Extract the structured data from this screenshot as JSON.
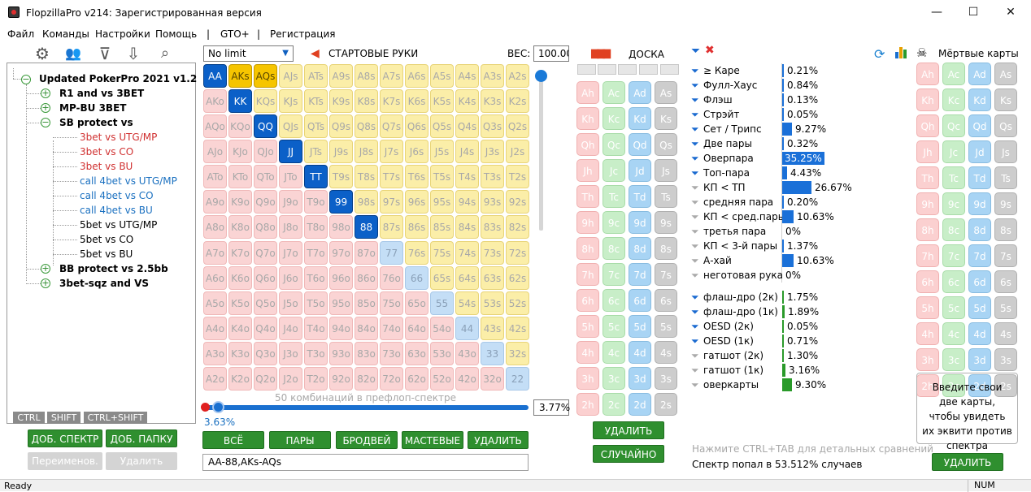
{
  "window": {
    "title": "FlopzillaPro v214: Зарегистрированная версия",
    "min": "—",
    "max": "☐",
    "close": "✕"
  },
  "menu": [
    "Файл",
    "Команды",
    "Настройки",
    "Помощь",
    "|",
    "GTO+",
    "|",
    "Регистрация"
  ],
  "toolbar_icons": [
    "gear-icon",
    "users-icon",
    "filter-add-icon",
    "import-icon",
    "search-icon"
  ],
  "tree": {
    "root": "Updated PokerPro 2021 v1.2",
    "nodes": [
      {
        "label": "R1 and vs 3BET",
        "bold": true,
        "sign": "+"
      },
      {
        "label": "MP-BU 3BET",
        "bold": true,
        "sign": "+"
      },
      {
        "label": "SB protect vs",
        "bold": true,
        "sign": "−"
      },
      {
        "label": "3bet vs UTG/MP",
        "color": "#d03030"
      },
      {
        "label": "3bet vs CO",
        "color": "#d03030"
      },
      {
        "label": "3bet vs BU",
        "color": "#d03030"
      },
      {
        "label": "call 4bet vs UTG/MP",
        "color": "#1a70c0"
      },
      {
        "label": "call 4bet vs CO",
        "color": "#1a70c0"
      },
      {
        "label": "call 4bet vs BU",
        "color": "#1a70c0"
      },
      {
        "label": "5bet vs UTG/MP",
        "color": "#000"
      },
      {
        "label": "5bet vs CO",
        "color": "#000"
      },
      {
        "label": "5bet vs BU",
        "color": "#000"
      },
      {
        "label": "BB protect vs 2.5bb",
        "bold": true,
        "sign": "+"
      },
      {
        "label": "3bet-sqz and VS",
        "bold": true,
        "sign": "+"
      }
    ]
  },
  "modkeys": [
    "CTRL",
    "SHIFT",
    "CTRL+SHIFT"
  ],
  "left_buttons": {
    "add_range": "ДОБ. СПЕКТР",
    "add_folder": "ДОБ. ПАПКУ",
    "rename": "Переименов.",
    "delete": "Удалить"
  },
  "range": {
    "limit": "No limit",
    "header": "СТАРТОВЫЕ РУКИ",
    "weight_label": "ВЕС:",
    "weight": "100.00",
    "combos_text": "50 комбинаций в префлоп-спектре",
    "percent_left": "3.63%",
    "percent_box": "3.77%",
    "input_text": "AA-88,AKs-AQs",
    "buttons": [
      "ВСЁ",
      "ПАРЫ",
      "БРОДВЕЙ",
      "МАСТЕВЫЕ",
      "УДАЛИТЬ"
    ]
  },
  "grid": [
    [
      "AA",
      "AKs",
      "AQs",
      "AJs",
      "ATs",
      "A9s",
      "A8s",
      "A7s",
      "A6s",
      "A5s",
      "A4s",
      "A3s",
      "A2s"
    ],
    [
      "AKo",
      "KK",
      "KQs",
      "KJs",
      "KTs",
      "K9s",
      "K8s",
      "K7s",
      "K6s",
      "K5s",
      "K4s",
      "K3s",
      "K2s"
    ],
    [
      "AQo",
      "KQo",
      "QQ",
      "QJs",
      "QTs",
      "Q9s",
      "Q8s",
      "Q7s",
      "Q6s",
      "Q5s",
      "Q4s",
      "Q3s",
      "Q2s"
    ],
    [
      "AJo",
      "KJo",
      "QJo",
      "JJ",
      "JTs",
      "J9s",
      "J8s",
      "J7s",
      "J6s",
      "J5s",
      "J4s",
      "J3s",
      "J2s"
    ],
    [
      "ATo",
      "KTo",
      "QTo",
      "JTo",
      "TT",
      "T9s",
      "T8s",
      "T7s",
      "T6s",
      "T5s",
      "T4s",
      "T3s",
      "T2s"
    ],
    [
      "A9o",
      "K9o",
      "Q9o",
      "J9o",
      "T9o",
      "99",
      "98s",
      "97s",
      "96s",
      "95s",
      "94s",
      "93s",
      "92s"
    ],
    [
      "A8o",
      "K8o",
      "Q8o",
      "J8o",
      "T8o",
      "98o",
      "88",
      "87s",
      "86s",
      "85s",
      "84s",
      "83s",
      "82s"
    ],
    [
      "A7o",
      "K7o",
      "Q7o",
      "J7o",
      "T7o",
      "97o",
      "87o",
      "77",
      "76s",
      "75s",
      "74s",
      "73s",
      "72s"
    ],
    [
      "A6o",
      "K6o",
      "Q6o",
      "J6o",
      "T6o",
      "96o",
      "86o",
      "76o",
      "66",
      "65s",
      "64s",
      "63s",
      "62s"
    ],
    [
      "A5o",
      "K5o",
      "Q5o",
      "J5o",
      "T5o",
      "95o",
      "85o",
      "75o",
      "65o",
      "55",
      "54s",
      "53s",
      "52s"
    ],
    [
      "A4o",
      "K4o",
      "Q4o",
      "J4o",
      "T4o",
      "94o",
      "84o",
      "74o",
      "64o",
      "54o",
      "44",
      "43s",
      "42s"
    ],
    [
      "A3o",
      "K3o",
      "Q3o",
      "J3o",
      "T3o",
      "93o",
      "83o",
      "73o",
      "63o",
      "53o",
      "43o",
      "33",
      "32s"
    ],
    [
      "A2o",
      "K2o",
      "Q2o",
      "J2o",
      "T2o",
      "92o",
      "82o",
      "72o",
      "62o",
      "52o",
      "42o",
      "32o",
      "22"
    ]
  ],
  "selected_hands": [
    "AA",
    "KK",
    "QQ",
    "JJ",
    "TT",
    "99",
    "88"
  ],
  "gold_hands": [
    "AKs",
    "AQs"
  ],
  "board": {
    "header": "ДОСКА",
    "ranks": [
      "A",
      "K",
      "Q",
      "J",
      "T",
      "9",
      "8",
      "7",
      "6",
      "5",
      "4",
      "3",
      "2"
    ],
    "suits": [
      "h",
      "c",
      "d",
      "s"
    ],
    "delete": "УДАЛИТЬ",
    "random": "СЛУЧАЙНО"
  },
  "stats": [
    {
      "label": "≥ Каре",
      "value": "0.21%",
      "pct": 0.21,
      "filter": "blue"
    },
    {
      "label": "Фулл-Хаус",
      "value": "0.84%",
      "pct": 0.84,
      "filter": "blue"
    },
    {
      "label": "Флэш",
      "value": "0.13%",
      "pct": 0.13,
      "filter": "blue"
    },
    {
      "label": "Стрэйт",
      "value": "0.05%",
      "pct": 0.05,
      "filter": "blue"
    },
    {
      "label": "Сет / Трипс",
      "value": "9.27%",
      "pct": 9.27,
      "filter": "blue"
    },
    {
      "label": "Две пары",
      "value": "0.32%",
      "pct": 0.32,
      "filter": "blue"
    },
    {
      "label": "Оверпара",
      "value": "35.25%",
      "pct": 35.25,
      "filter": "blue"
    },
    {
      "label": "Топ-пара",
      "value": "4.43%",
      "pct": 4.43,
      "filter": "blue"
    },
    {
      "label": "КП < ТП",
      "value": "26.67%",
      "pct": 26.67,
      "filter": "gray"
    },
    {
      "label": "средняя пара",
      "value": "0.20%",
      "pct": 0.2,
      "filter": "gray"
    },
    {
      "label": "КП < сред.пары",
      "value": "10.63%",
      "pct": 10.63,
      "filter": "gray"
    },
    {
      "label": "третья пара",
      "value": "0%",
      "pct": 0,
      "filter": "gray"
    },
    {
      "label": "КП < 3-й пары",
      "value": "1.37%",
      "pct": 1.37,
      "filter": "gray"
    },
    {
      "label": "А-хай",
      "value": "10.63%",
      "pct": 10.63,
      "filter": "gray"
    },
    {
      "label": "неготовая рука",
      "value": "0%",
      "pct": 0,
      "filter": "gray"
    }
  ],
  "draws": [
    {
      "label": "флаш-дро (2к)",
      "value": "1.75%",
      "pct": 1.75,
      "filter": "blue"
    },
    {
      "label": "флаш-дро (1к)",
      "value": "1.89%",
      "pct": 1.89,
      "filter": "blue"
    },
    {
      "label": "OESD (2к)",
      "value": "0.05%",
      "pct": 0.05,
      "filter": "blue"
    },
    {
      "label": "OESD (1к)",
      "value": "0.71%",
      "pct": 0.71,
      "filter": "blue"
    },
    {
      "label": "гатшот (2к)",
      "value": "1.30%",
      "pct": 1.3,
      "filter": "gray"
    },
    {
      "label": "гатшот (1к)",
      "value": "3.16%",
      "pct": 3.16,
      "filter": "gray"
    },
    {
      "label": "оверкарты",
      "value": "9.30%",
      "pct": 9.3,
      "filter": "gray"
    }
  ],
  "footer": {
    "hint": "Нажмите CTRL+TAB для детальных сравнений",
    "hit": "Спектр попал в 53.512% случаев"
  },
  "dead": {
    "header": "Мёртвые карты",
    "info": "Введите свои две карты, чтобы увидеть их эквити против спектра",
    "delete": "УДАЛИТЬ"
  },
  "status": {
    "left": "Ready",
    "right": "NUM"
  },
  "colors": {
    "green_button": "#2f8f2f",
    "selected_hand": "#0b60c8",
    "gold_hand": "#f6c500",
    "bar_blue": "#1a70d8"
  }
}
